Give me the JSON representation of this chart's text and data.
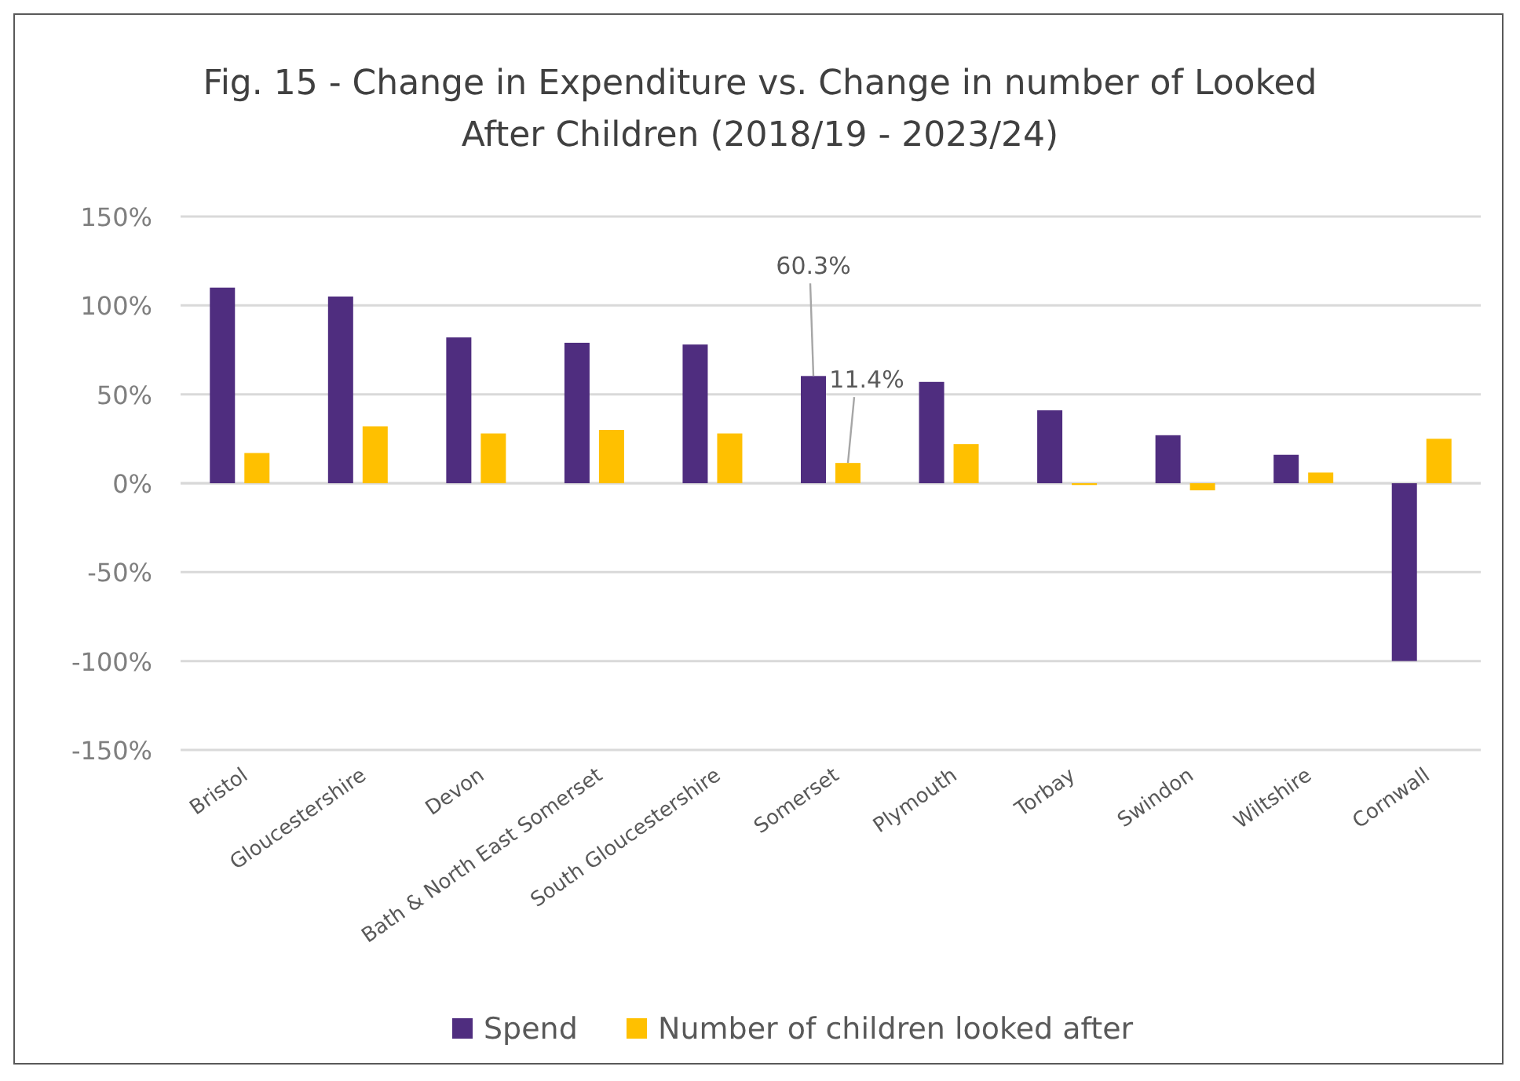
{
  "chart_data": {
    "type": "bar",
    "title": "Fig. 15 - Change in Expenditure vs. Change in number of Looked After Children (2018/19 - 2023/24)",
    "categories": [
      "Bristol",
      "Gloucestershire",
      "Devon",
      "Bath & North East Somerset",
      "South Gloucestershire",
      "Somerset",
      "Plymouth",
      "Torbay",
      "Swindon",
      "Wiltshire",
      "Cornwall"
    ],
    "series": [
      {
        "name": "Spend",
        "color": "#4f2d7f",
        "values": [
          110,
          105,
          82,
          79,
          78,
          60.3,
          57,
          41,
          27,
          16,
          -100
        ],
        "value_labels": [
          null,
          null,
          null,
          null,
          null,
          "60.3%",
          null,
          null,
          null,
          null,
          null
        ]
      },
      {
        "name": "Number of children looked after",
        "color": "#ffc000",
        "values": [
          17,
          32,
          28,
          30,
          28,
          11.4,
          22,
          -1,
          -4,
          6,
          25
        ],
        "value_labels": [
          null,
          null,
          null,
          null,
          null,
          "11.4%",
          null,
          null,
          null,
          null,
          null
        ]
      }
    ],
    "ylim": [
      -150,
      150
    ],
    "yticks": [
      {
        "value": -150,
        "label": "-150%"
      },
      {
        "value": -100,
        "label": "-100%"
      },
      {
        "value": -50,
        "label": "-50%"
      },
      {
        "value": 0,
        "label": "0%"
      },
      {
        "value": 50,
        "label": "50%"
      },
      {
        "value": 100,
        "label": "100%"
      },
      {
        "value": 150,
        "label": "150%"
      }
    ],
    "grid": "y",
    "legend": "bottom"
  }
}
